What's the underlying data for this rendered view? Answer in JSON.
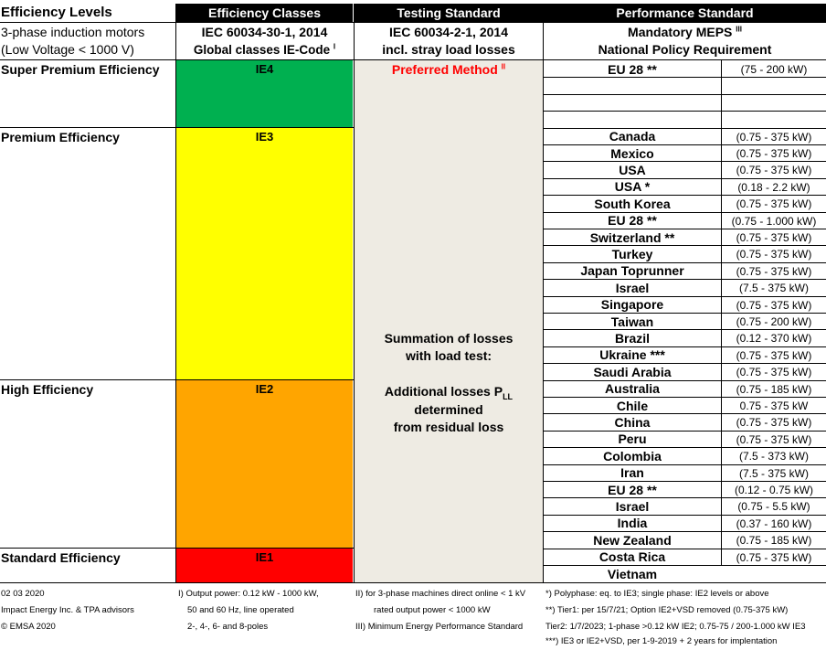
{
  "header": {
    "levels_title": "Efficiency Levels",
    "levels_sub1": "3-phase induction motors",
    "levels_sub2": "(Low Voltage < 1000 V)",
    "classes_title": "Efficiency Classes",
    "classes_sub1": "IEC 60034-30-1, 2014",
    "classes_sub2": "Global classes IE-Code",
    "classes_sup": "I",
    "testing_title": "Testing Standard",
    "testing_sub1": "IEC 60034-2-1, 2014",
    "testing_sub2": "incl. stray load losses",
    "perf_title": "Performance Standard",
    "perf_sub1": "Mandatory MEPS",
    "perf_sup": "III",
    "perf_sub2": "National Policy Requirement"
  },
  "levels": [
    {
      "name": "Super Premium Efficiency",
      "code": "IE4",
      "color": "#00b050"
    },
    {
      "name": "Premium Efficiency",
      "code": "IE3",
      "color": "#ffff00"
    },
    {
      "name": "High Efficiency",
      "code": "IE2",
      "color": "#ffa500"
    },
    {
      "name": "Standard Efficiency",
      "code": "IE1",
      "color": "#ff0000"
    }
  ],
  "testing": {
    "preferred": "Preferred Method",
    "preferred_sup": "II",
    "preferred_color": "#ff0000",
    "column_bg": "#eeebe3",
    "sum1": "Summation of losses",
    "sum2": "with load test:",
    "add1": "Additional losses P",
    "add1_sub": "LL",
    "add2": "determined",
    "add3": "from residual loss"
  },
  "countries": [
    {
      "name": "EU 28 **",
      "range": "(75 - 200 kW)"
    },
    {
      "name": "",
      "range": ""
    },
    {
      "name": "",
      "range": ""
    },
    {
      "name": "",
      "range": ""
    },
    {
      "name": "Canada",
      "range": "(0.75 - 375 kW)"
    },
    {
      "name": "Mexico",
      "range": "(0.75 - 375 kW)"
    },
    {
      "name": "USA",
      "range": "(0.75 - 375 kW)"
    },
    {
      "name": "USA *",
      "range": "(0.18 - 2.2 kW)"
    },
    {
      "name": "South Korea",
      "range": "(0.75 - 375 kW)"
    },
    {
      "name": "EU 28 **",
      "range": "(0.75 - 1.000 kW)"
    },
    {
      "name": "Switzerland **",
      "range": "(0.75 - 375 kW)"
    },
    {
      "name": "Turkey",
      "range": "(0.75 - 375 kW)"
    },
    {
      "name": "Japan Toprunner",
      "range": "(0.75 - 375 kW)"
    },
    {
      "name": "Israel",
      "range": "(7.5 - 375 kW)"
    },
    {
      "name": "Singapore",
      "range": "(0.75 - 375 kW)"
    },
    {
      "name": "Taiwan",
      "range": "(0.75 - 200 kW)"
    },
    {
      "name": "Brazil",
      "range": "(0.12 - 370 kW)"
    },
    {
      "name": "Ukraine ***",
      "range": "(0.75 - 375 kW)"
    },
    {
      "name": "Saudi Arabia",
      "range": "(0.75 - 375 kW)"
    },
    {
      "name": "Australia",
      "range": "(0.75 - 185 kW)"
    },
    {
      "name": "Chile",
      "range": "0.75 - 375 kW"
    },
    {
      "name": "China",
      "range": "(0.75 - 375 kW)"
    },
    {
      "name": "Peru",
      "range": "(0.75 - 375 kW)"
    },
    {
      "name": "Colombia",
      "range": "(7.5 - 373 kW)"
    },
    {
      "name": "Iran",
      "range": "(7.5 - 375 kW)"
    },
    {
      "name": "EU 28 **",
      "range": "(0.12 - 0.75 kW)"
    },
    {
      "name": "Israel",
      "range": "(0.75 - 5.5 kW)"
    },
    {
      "name": "India",
      "range": "(0.37 - 160 kW)"
    },
    {
      "name": "New Zealand",
      "range": "(0.75 - 185 kW)"
    },
    {
      "name": "Costa Rica",
      "range": "(0.75 - 375 kW)"
    },
    {
      "name": "Vietnam",
      "range": ""
    }
  ],
  "footer": {
    "date": "02 03 2020",
    "credit": "Impact Energy Inc. & TPA advisors",
    "copyright": "© EMSA 2020",
    "note1a": "I) Output power: 0.12 kW - 1000 kW,",
    "note1b": "50 and 60 Hz, line operated",
    "note1c": "2-, 4-, 6- and 8-poles",
    "note2a": "II)  for 3-phase machines direct online < 1 kV",
    "note2b": "rated output power < 1000 kW",
    "note3": "III) Minimum Energy Performance Standard",
    "star1": "*) Polyphase: eq. to IE3; single phase: IE2 levels or above",
    "star2": "**) Tier1: per 15/7/21; Option IE2+VSD removed (0.75-375 kW)",
    "star2b": "Tier2: 1/7/2023; 1-phase >0.12 kW IE2; 0.75-75 / 200-1.000 kW IE3",
    "star3": "***) IE3 or IE2+VSD, per 1-9-2019 + 2 years for implentation"
  }
}
